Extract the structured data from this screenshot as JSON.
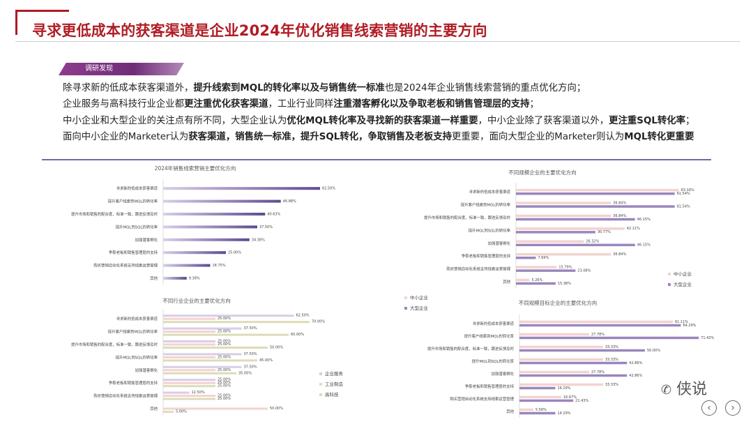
{
  "title": "寻求更低成本的获客渠道是企业2024年优化销售线索营销的主要方向",
  "tag": "调研发现",
  "findings": [
    [
      {
        "t": "除寻求新的低成本获客渠道外，",
        "b": false
      },
      {
        "t": "提升线索到MQL的转化率以及与销售统一标准",
        "b": true
      },
      {
        "t": "也是2024年企业销售线索营销的重点优化方向；",
        "b": false
      }
    ],
    [
      {
        "t": "企业服务与高科技行业企业都",
        "b": false
      },
      {
        "t": "更注重优化获客渠道",
        "b": true
      },
      {
        "t": "，工业行业同样",
        "b": false
      },
      {
        "t": "注重潜客孵化以及争取老板和销售管理层的支持",
        "b": true
      },
      {
        "t": "；",
        "b": false
      }
    ],
    [
      {
        "t": "中小企业和大型企业的关注点有所不同，大型企业认为",
        "b": false
      },
      {
        "t": "优化MQL转化率及寻找新的获客渠道一样重要",
        "b": true
      },
      {
        "t": "，中小企业除了获客渠道以外，",
        "b": false
      },
      {
        "t": "更注重SQL转化率",
        "b": true
      },
      {
        "t": "；",
        "b": false
      }
    ],
    [
      {
        "t": "面向中小企业的Marketer认为",
        "b": false
      },
      {
        "t": "获客渠道，销售统一标准，提升SQL转化，争取销售及老板支持",
        "b": true
      },
      {
        "t": "更重要，面向大型企业的Marketer则认为",
        "b": false
      },
      {
        "t": "MQL转化更重要",
        "b": true
      }
    ]
  ],
  "watermark": "侠说",
  "colors": {
    "purple": "#6b4f9a",
    "light": "#d8cde6",
    "pink": "#f2d3d0",
    "tan": "#dedbb8",
    "mid": "#9a86bd",
    "title": "#b01c24"
  },
  "chart_data": [
    {
      "type": "bar",
      "title": "2024年销售线索营销主要优化方向",
      "categories": [
        "寻求新的低成本获客渠道",
        "提升客户线索到MQL的转化率",
        "提升市场和销售的配合度，标准一致，跟进反馈及时",
        "提升MQL到SQL的转化率",
        "加强潜客孵化",
        "争取老板和销售管理层的支持",
        "购买营销自动化系统支持线索运营管理",
        "其他"
      ],
      "series": [
        {
          "name": "",
          "values": [
            62.5,
            46.88,
            40.63,
            37.5,
            34.38,
            25.0,
            18.75,
            9.38
          ]
        }
      ],
      "labels": [
        [
          "62.50%",
          "46.88%",
          "40.63%",
          "37.50%",
          "34.38%",
          "25.00%",
          "18.75%",
          "9.38%"
        ]
      ]
    },
    {
      "type": "bar",
      "title": "不同行业企业的主要优化方向",
      "categories": [
        "寻求新的低成本获客渠道",
        "提升客户线索到MQL的转化率",
        "提升市场和销售的配合度，标准一致，跟进反馈及时",
        "提升MQL到SQL的转化率",
        "加强潜客孵化",
        "争取老板和销售管理层的支持",
        "购买营销自动化系统支持线索运营管理",
        "其他"
      ],
      "series": [
        {
          "name": "企业服务",
          "values": [
            62.5,
            37.5,
            25.0,
            37.5,
            37.5,
            25.0,
            12.5,
            0
          ]
        },
        {
          "name": "工业制造",
          "values": [
            25.0,
            25.0,
            25.0,
            25.0,
            25.0,
            25.0,
            25.0,
            50.0
          ]
        },
        {
          "name": "高科技",
          "values": [
            70.0,
            60.0,
            50.0,
            45.0,
            35.0,
            25.0,
            25.0,
            5.0
          ]
        }
      ],
      "labels": [
        [
          "62.50%",
          "37.50%",
          "25.00%",
          "37.50%",
          "37.50%",
          "25.00%",
          "12.50%",
          ""
        ],
        [
          "25.00%",
          "25.00%",
          "25.00%",
          "25.00%",
          "25.00%",
          "25.00%",
          "25.00%",
          "50.00%"
        ],
        [
          "70.00%",
          "60.00%",
          "50.00%",
          "45.00%",
          "35.00%",
          "25.00%",
          "25.00%",
          "5.00%"
        ]
      ]
    },
    {
      "type": "bar",
      "title": "不同规模企业的主要优化方向",
      "categories": [
        "寻求新的低成本获客渠道",
        "提升客户线索到MQL的转化率",
        "提升市场和销售的配合度，标准一致，跟进反馈及时",
        "提升MQL到SQL的转化率",
        "加强潜客孵化",
        "争取老板和销售管理层的支持",
        "购买营销自动化系统支持线索运营管理",
        "其他"
      ],
      "series": [
        {
          "name": "中小企业",
          "values": [
            63.16,
            36.84,
            36.84,
            42.11,
            26.32,
            36.84,
            15.79,
            5.26
          ]
        },
        {
          "name": "大型企业",
          "values": [
            61.54,
            61.54,
            46.15,
            30.77,
            46.15,
            7.69,
            23.08,
            15.38
          ]
        }
      ],
      "labels": [
        [
          "63.16%",
          "36.84%",
          "36.84%",
          "42.11%",
          "26.32%",
          "36.84%",
          "15.79%",
          "5.26%"
        ],
        [
          "61.54%",
          "61.54%",
          "46.15%",
          "30.77%",
          "46.15%",
          "7.69%",
          "23.08%",
          "15.38%"
        ]
      ]
    },
    {
      "type": "bar",
      "title": "不同规模目标企业的主要优化方向",
      "categories": [
        "寻求新的低成本获客渠道",
        "提升客户线索到MQL的转化率",
        "提升市场和销售的配合度，标准一致，跟进反馈及时",
        "提升MQL到SQL的转化率",
        "加强潜客孵化",
        "争取老板和销售管理层的支持",
        "购买营销自动化系统支持线索运营管理",
        "其他"
      ],
      "series": [
        {
          "name": "中小企业",
          "values": [
            61.11,
            27.78,
            33.33,
            33.33,
            27.78,
            33.33,
            16.67,
            5.56
          ]
        },
        {
          "name": "大型企业",
          "values": [
            64.29,
            71.43,
            50.0,
            42.86,
            42.86,
            14.29,
            21.43,
            14.29
          ]
        }
      ],
      "labels": [
        [
          "61.11%",
          "27.78%",
          "33.33%",
          "33.33%",
          "27.78%",
          "33.33%",
          "16.67%",
          "5.56%"
        ],
        [
          "64.29%",
          "71.43%",
          "50.00%",
          "42.86%",
          "42.86%",
          "14.29%",
          "21.43%",
          "14.29%"
        ]
      ]
    }
  ]
}
